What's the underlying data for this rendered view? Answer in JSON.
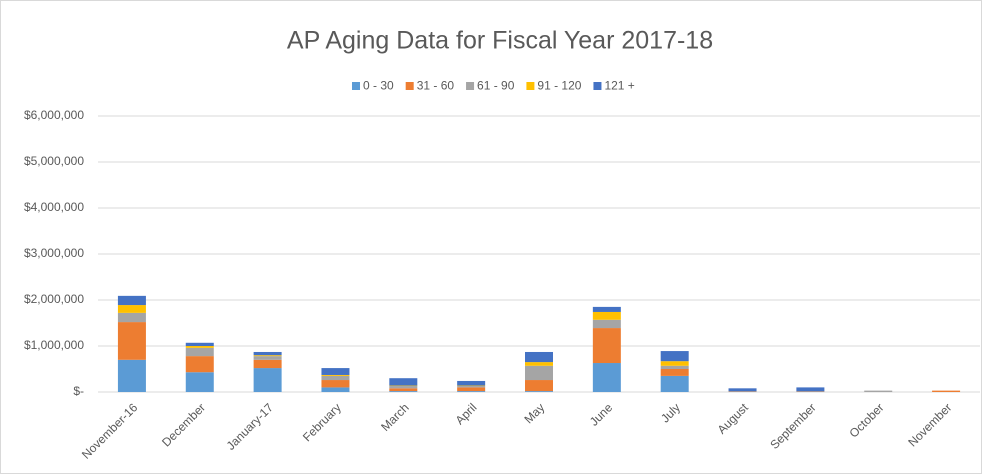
{
  "chart_data": {
    "type": "stacked_bar",
    "title": "AP Aging Data for Fiscal Year 2017-18",
    "categories": [
      "November-16",
      "December",
      "January-17",
      "February",
      "March",
      "April",
      "May",
      "June",
      "July",
      "August",
      "September",
      "October",
      "November"
    ],
    "series": [
      {
        "name": "0 - 30",
        "color": "#5b9bd5",
        "values": [
          700000,
          430000,
          520000,
          100000,
          20000,
          20000,
          20000,
          630000,
          350000,
          10000,
          10000,
          0,
          0
        ]
      },
      {
        "name": "31 - 60",
        "color": "#ed7d31",
        "values": [
          820000,
          350000,
          180000,
          160000,
          60000,
          80000,
          240000,
          760000,
          150000,
          10000,
          10000,
          0,
          30000
        ]
      },
      {
        "name": "61 - 90",
        "color": "#a5a5a5",
        "values": [
          200000,
          180000,
          80000,
          90000,
          50000,
          30000,
          310000,
          180000,
          70000,
          0,
          0,
          30000,
          0
        ]
      },
      {
        "name": "91 - 120",
        "color": "#ffc000",
        "values": [
          170000,
          40000,
          20000,
          20000,
          10000,
          10000,
          80000,
          170000,
          100000,
          0,
          0,
          0,
          0
        ]
      },
      {
        "name": "121 +",
        "color": "#4472c4",
        "values": [
          200000,
          70000,
          70000,
          150000,
          160000,
          100000,
          220000,
          110000,
          220000,
          60000,
          80000,
          0,
          0
        ]
      }
    ],
    "ylim": [
      0,
      6000000
    ],
    "yticks": [
      {
        "value": 0,
        "label": "$-"
      },
      {
        "value": 1000000,
        "label": "$1,000,000"
      },
      {
        "value": 2000000,
        "label": "$2,000,000"
      },
      {
        "value": 3000000,
        "label": "$3,000,000"
      },
      {
        "value": 4000000,
        "label": "$4,000,000"
      },
      {
        "value": 5000000,
        "label": "$5,000,000"
      },
      {
        "value": 6000000,
        "label": "$6,000,000"
      }
    ],
    "grid": true,
    "legend": "top"
  }
}
